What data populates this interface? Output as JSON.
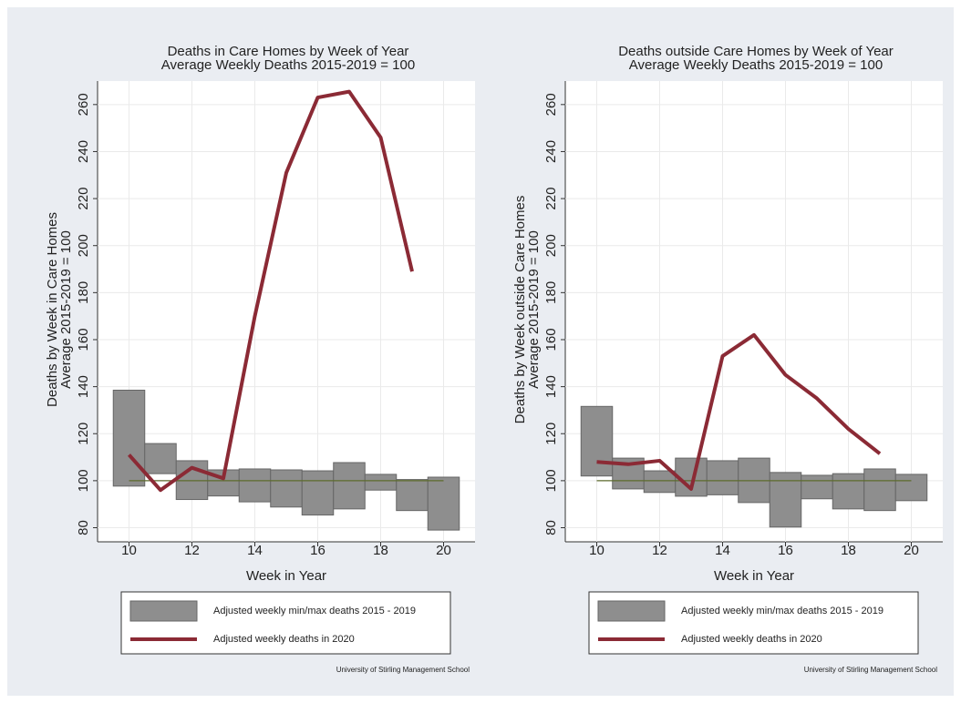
{
  "chart_data": [
    {
      "type": "range-line",
      "title": "Deaths in Care Homes by Week of Year",
      "subtitle": "Average Weekly Deaths 2015-2019 = 100",
      "ylabel": [
        "Deaths by Week in Care Homes",
        "Average 2015-2019 = 100"
      ],
      "xlabel": "Week in Year",
      "note": "University of Stirling Management School",
      "x": [
        10,
        11,
        12,
        13,
        14,
        15,
        16,
        17,
        18,
        19,
        20
      ],
      "series": [
        {
          "name": "Adjusted weekly min/max deaths 2015 - 2019",
          "type": "range",
          "color": "#8e8e8e",
          "low": [
            97.7,
            103,
            92,
            93.5,
            91,
            88.8,
            85.4,
            88,
            96,
            87.3,
            79
          ],
          "high": [
            138.5,
            115.8,
            108.5,
            104.6,
            105,
            104.6,
            104.2,
            107.7,
            102.7,
            100.5,
            101.5
          ]
        },
        {
          "name": "Adjusted weekly deaths in 2020",
          "type": "line",
          "color": "#8b2a35",
          "values": [
            111,
            96,
            105.5,
            101,
            170,
            231,
            263,
            265.5,
            246,
            189,
            null
          ]
        }
      ],
      "reference_line": {
        "value": 100,
        "color": "#5d6b2c"
      },
      "xlim": [
        9,
        21
      ],
      "xticks": [
        10,
        12,
        14,
        16,
        18,
        20
      ],
      "ylim": [
        74,
        270
      ],
      "yticks": [
        80,
        100,
        120,
        140,
        160,
        180,
        200,
        220,
        240,
        260
      ],
      "grid": true
    },
    {
      "type": "range-line",
      "title": "Deaths outside Care Homes by Week of Year",
      "subtitle": "Average Weekly Deaths 2015-2019 = 100",
      "ylabel": [
        "Deaths by  Week outside Care Homes",
        "Average 2015-2019 = 100"
      ],
      "xlabel": "Week in Year",
      "note": "University of Stirling Management School",
      "x": [
        10,
        11,
        12,
        13,
        14,
        15,
        16,
        17,
        18,
        19,
        20
      ],
      "series": [
        {
          "name": "Adjusted weekly min/max deaths 2015 - 2019",
          "type": "range",
          "color": "#8e8e8e",
          "low": [
            102,
            96.5,
            95,
            93.4,
            94,
            90.7,
            80.3,
            92.3,
            88,
            87.3,
            91.5
          ],
          "high": [
            131.6,
            109.6,
            104.2,
            109.6,
            108.5,
            109.6,
            103.5,
            102.3,
            103,
            105,
            102.7
          ]
        },
        {
          "name": "Adjusted weekly deaths in 2020",
          "type": "line",
          "color": "#8b2a35",
          "values": [
            108,
            107,
            108.5,
            96.5,
            153,
            162,
            145,
            135,
            122,
            111.5,
            null
          ]
        }
      ],
      "reference_line": {
        "value": 100,
        "color": "#5d6b2c"
      },
      "xlim": [
        9,
        21
      ],
      "xticks": [
        10,
        12,
        14,
        16,
        18,
        20
      ],
      "ylim": [
        74,
        270
      ],
      "yticks": [
        80,
        100,
        120,
        140,
        160,
        180,
        200,
        220,
        240,
        260
      ],
      "grid": true
    }
  ]
}
